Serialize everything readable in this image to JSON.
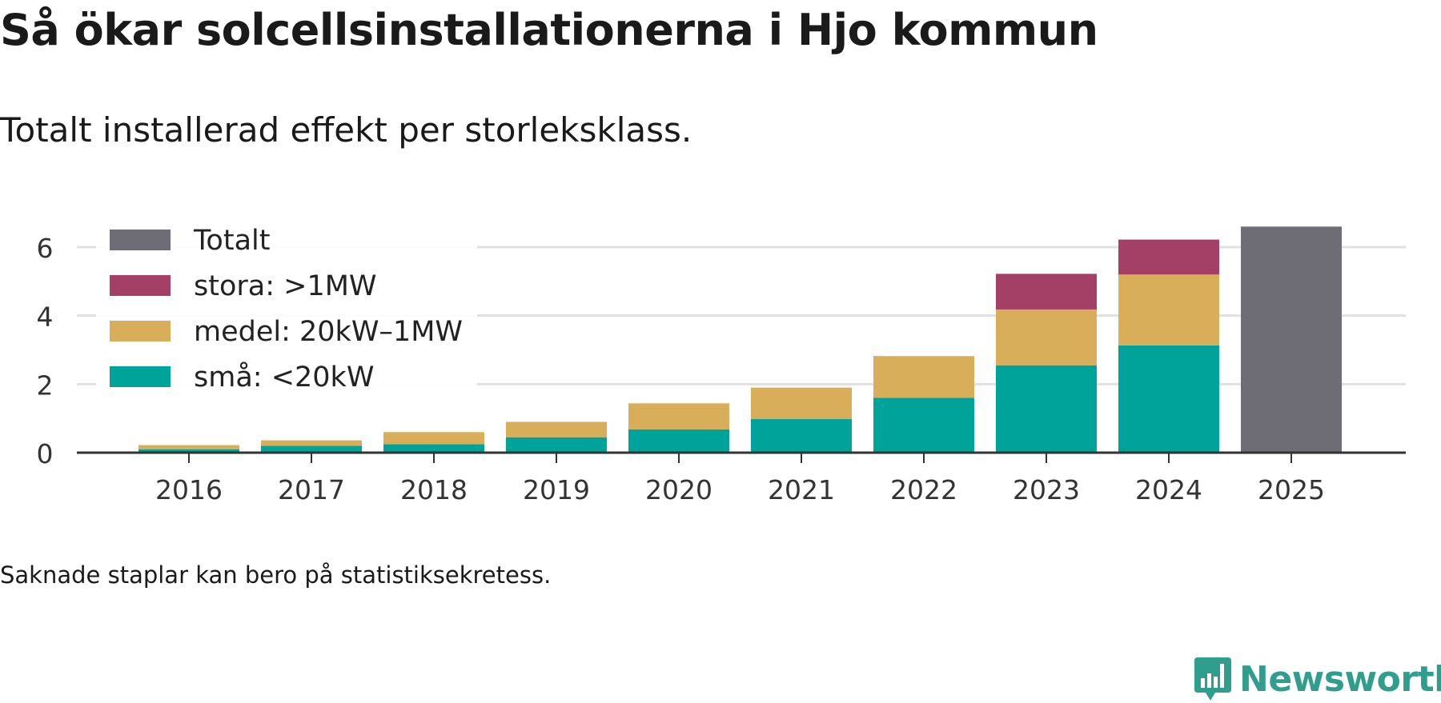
{
  "header": {
    "title": "Så ökar solcellsinstallationerna i Hjo kommun",
    "subtitle": "Totalt installerad effekt per storleksklass."
  },
  "footer": {
    "note": "Saknade staplar kan bero på statistiksekretess.",
    "brand": "Newsworthy"
  },
  "colors": {
    "totalt": "#6e6d75",
    "stora": "#a43f66",
    "medel": "#d9ae5b",
    "sma": "#00a39a",
    "brand": "#2f9e8f"
  },
  "chart_data": {
    "type": "bar",
    "stacked": true,
    "title": "Så ökar solcellsinstallationerna i Hjo kommun",
    "subtitle": "Totalt installerad effekt per storleksklass.",
    "xlabel": "",
    "ylabel": "",
    "ylim": [
      0,
      6.6
    ],
    "yticks": [
      0,
      2,
      4,
      6
    ],
    "grid": true,
    "legend_position": "top-left",
    "categories": [
      "2016",
      "2017",
      "2018",
      "2019",
      "2020",
      "2021",
      "2022",
      "2023",
      "2024",
      "2025"
    ],
    "series": [
      {
        "name": "små: <20kW",
        "key": "sma",
        "values": [
          0.1,
          0.2,
          0.25,
          0.45,
          0.68,
          0.98,
          1.6,
          2.55,
          3.13,
          null
        ]
      },
      {
        "name": "medel: 20kW–1MW",
        "key": "medel",
        "values": [
          0.12,
          0.16,
          0.35,
          0.45,
          0.76,
          0.92,
          1.22,
          1.63,
          2.07,
          null
        ]
      },
      {
        "name": "stora: >1MW",
        "key": "stora",
        "values": [
          null,
          null,
          null,
          null,
          null,
          null,
          null,
          1.04,
          1.02,
          null
        ]
      },
      {
        "name": "Totalt",
        "key": "totalt",
        "values": [
          null,
          null,
          null,
          null,
          null,
          null,
          null,
          null,
          null,
          6.6
        ]
      }
    ],
    "legend_order": [
      "totalt",
      "stora",
      "medel",
      "sma"
    ]
  }
}
